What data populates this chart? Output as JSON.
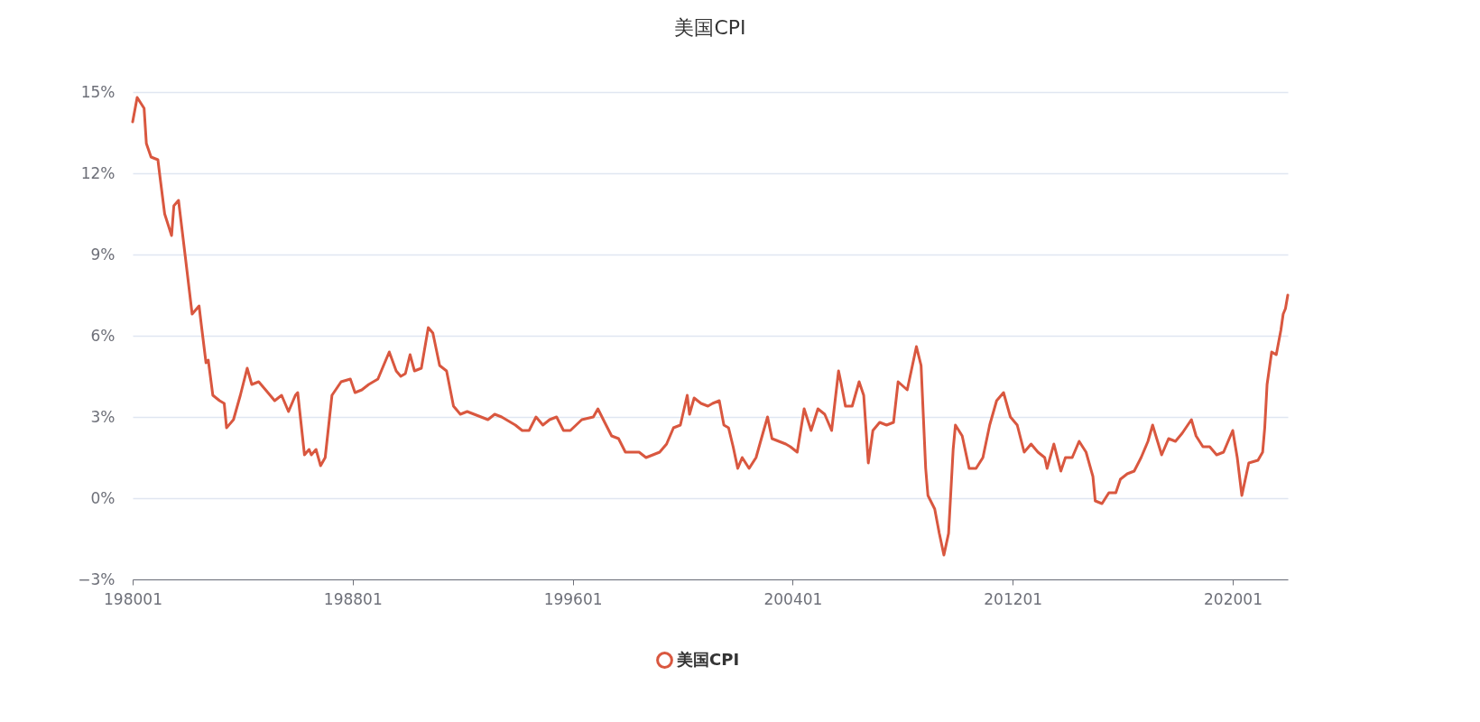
{
  "chart_data": {
    "type": "line",
    "title": "美国CPI",
    "legend": "bottom",
    "grid": "y",
    "x": [
      "1980-01",
      "1980-03",
      "1980-06",
      "1980-07",
      "1980-09",
      "1980-12",
      "1981-01",
      "1981-03",
      "1981-06",
      "1981-07",
      "1981-09",
      "1981-12",
      "1982-03",
      "1982-06",
      "1982-07",
      "1982-09",
      "1982-10",
      "1982-12",
      "1983-03",
      "1983-05",
      "1983-06",
      "1983-09",
      "1983-12",
      "1984-03",
      "1984-05",
      "1984-08",
      "1984-12",
      "1985-03",
      "1985-06",
      "1985-09",
      "1985-12",
      "1986-01",
      "1986-04",
      "1986-06",
      "1986-07",
      "1986-09",
      "1986-11",
      "1987-01",
      "1987-04",
      "1987-08",
      "1987-12",
      "1988-02",
      "1988-05",
      "1988-08",
      "1988-12",
      "1989-03",
      "1989-05",
      "1989-08",
      "1989-10",
      "1989-12",
      "1990-02",
      "1990-04",
      "1990-07",
      "1990-10",
      "1990-12",
      "1991-03",
      "1991-06",
      "1991-09",
      "1991-12",
      "1992-03",
      "1992-06",
      "1992-09",
      "1992-12",
      "1993-03",
      "1993-06",
      "1993-12",
      "1994-03",
      "1994-06",
      "1994-09",
      "1994-12",
      "1995-03",
      "1995-06",
      "1995-09",
      "1995-12",
      "1996-05",
      "1996-10",
      "1996-12",
      "1997-03",
      "1997-06",
      "1997-09",
      "1997-12",
      "1998-06",
      "1998-09",
      "1998-12",
      "1999-03",
      "1999-06",
      "1999-09",
      "1999-12",
      "2000-03",
      "2000-04",
      "2000-06",
      "2000-09",
      "2000-12",
      "2001-02",
      "2001-05",
      "2001-07",
      "2001-09",
      "2001-11",
      "2002-01",
      "2002-03",
      "2002-06",
      "2002-09",
      "2002-12",
      "2003-02",
      "2003-04",
      "2003-07",
      "2003-10",
      "2003-12",
      "2004-03",
      "2004-06",
      "2004-09",
      "2004-12",
      "2005-03",
      "2005-06",
      "2005-09",
      "2005-10",
      "2005-12",
      "2006-03",
      "2006-06",
      "2006-08",
      "2006-10",
      "2006-12",
      "2007-03",
      "2007-06",
      "2007-09",
      "2007-11",
      "2008-03",
      "2008-07",
      "2008-09",
      "2008-11",
      "2008-12",
      "2009-03",
      "2009-05",
      "2009-07",
      "2009-09",
      "2009-11",
      "2009-12",
      "2010-03",
      "2010-06",
      "2010-09",
      "2010-12",
      "2011-03",
      "2011-06",
      "2011-09",
      "2011-12",
      "2012-03",
      "2012-06",
      "2012-09",
      "2012-12",
      "2013-03",
      "2013-04",
      "2013-07",
      "2013-10",
      "2013-12",
      "2014-03",
      "2014-06",
      "2014-09",
      "2014-12",
      "2015-01",
      "2015-04",
      "2015-07",
      "2015-10",
      "2015-12",
      "2016-03",
      "2016-06",
      "2016-09",
      "2016-12",
      "2017-02",
      "2017-06",
      "2017-09",
      "2017-12",
      "2018-03",
      "2018-07",
      "2018-09",
      "2018-12",
      "2019-03",
      "2019-06",
      "2019-09",
      "2019-12",
      "2020-01",
      "2020-03",
      "2020-05",
      "2020-08",
      "2020-12",
      "2021-02",
      "2021-03",
      "2021-04",
      "2021-06",
      "2021-08",
      "2021-10",
      "2021-11",
      "2021-12",
      "2022-01"
    ],
    "xlim": [
      "1980-01",
      "2022-01"
    ],
    "xticks": [
      {
        "value": "1980-01",
        "label": "198001"
      },
      {
        "value": "1988-01",
        "label": "198801"
      },
      {
        "value": "1996-01",
        "label": "199601"
      },
      {
        "value": "2004-01",
        "label": "200401"
      },
      {
        "value": "2012-01",
        "label": "201201"
      },
      {
        "value": "2020-01",
        "label": "202001"
      }
    ],
    "ylim": [
      -3,
      15
    ],
    "yticks": [
      {
        "value": -3,
        "label": "−3%"
      },
      {
        "value": 0,
        "label": "0%"
      },
      {
        "value": 3,
        "label": "3%"
      },
      {
        "value": 6,
        "label": "6%"
      },
      {
        "value": 9,
        "label": "9%"
      },
      {
        "value": 12,
        "label": "12%"
      },
      {
        "value": 15,
        "label": "15%"
      }
    ],
    "series": [
      {
        "name": "美国CPI",
        "color": "#d9573f",
        "values": [
          13.9,
          14.8,
          14.4,
          13.1,
          12.6,
          12.5,
          11.8,
          10.5,
          9.7,
          10.8,
          11.0,
          8.9,
          6.8,
          7.1,
          6.4,
          5.0,
          5.1,
          3.8,
          3.6,
          3.5,
          2.6,
          2.9,
          3.8,
          4.8,
          4.2,
          4.3,
          3.9,
          3.6,
          3.8,
          3.2,
          3.8,
          3.9,
          1.6,
          1.8,
          1.6,
          1.8,
          1.2,
          1.5,
          3.8,
          4.3,
          4.4,
          3.9,
          4.0,
          4.2,
          4.4,
          5.0,
          5.4,
          4.7,
          4.5,
          4.6,
          5.3,
          4.7,
          4.8,
          6.3,
          6.1,
          4.9,
          4.7,
          3.4,
          3.1,
          3.2,
          3.1,
          3.0,
          2.9,
          3.1,
          3.0,
          2.7,
          2.5,
          2.5,
          3.0,
          2.7,
          2.9,
          3.0,
          2.5,
          2.5,
          2.9,
          3.0,
          3.3,
          2.8,
          2.3,
          2.2,
          1.7,
          1.7,
          1.5,
          1.6,
          1.7,
          2.0,
          2.6,
          2.7,
          3.8,
          3.1,
          3.7,
          3.5,
          3.4,
          3.5,
          3.6,
          2.7,
          2.6,
          1.9,
          1.1,
          1.5,
          1.1,
          1.5,
          2.4,
          3.0,
          2.2,
          2.1,
          2.0,
          1.9,
          1.7,
          3.3,
          2.5,
          3.3,
          3.1,
          2.5,
          4.7,
          4.3,
          3.4,
          3.4,
          4.3,
          3.8,
          1.3,
          2.5,
          2.8,
          2.7,
          2.8,
          4.3,
          4.0,
          5.6,
          4.9,
          1.1,
          0.1,
          -0.4,
          -1.3,
          -2.1,
          -1.3,
          1.8,
          2.7,
          2.3,
          1.1,
          1.1,
          1.5,
          2.7,
          3.6,
          3.9,
          3.0,
          2.7,
          1.7,
          2.0,
          1.7,
          1.5,
          1.1,
          2.0,
          1.0,
          1.5,
          1.5,
          2.1,
          1.7,
          0.8,
          -0.1,
          -0.2,
          0.2,
          0.2,
          0.7,
          0.9,
          1.0,
          1.5,
          2.1,
          2.7,
          1.6,
          2.2,
          2.1,
          2.4,
          2.9,
          2.3,
          1.9,
          1.9,
          1.6,
          1.7,
          2.3,
          2.5,
          1.5,
          0.1,
          1.3,
          1.4,
          1.7,
          2.6,
          4.2,
          5.4,
          5.3,
          6.2,
          6.8,
          7.0,
          7.5
        ]
      }
    ]
  }
}
